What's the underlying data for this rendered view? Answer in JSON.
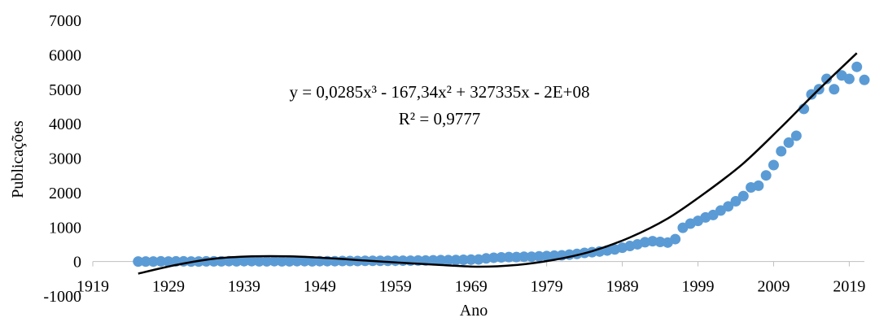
{
  "chart_data": {
    "type": "scatter",
    "title": "",
    "xlabel": "Ano",
    "ylabel": "Publicações",
    "xlim": [
      1919,
      2021
    ],
    "ylim": [
      -1000,
      7000
    ],
    "x_ticks": [
      1919,
      1929,
      1939,
      1949,
      1959,
      1969,
      1979,
      1989,
      1999,
      2009,
      2019
    ],
    "y_ticks": [
      -1000,
      0,
      1000,
      2000,
      3000,
      4000,
      5000,
      6000,
      7000
    ],
    "grid": false,
    "legend": "none",
    "marker_color": "#5b9bd5",
    "trendline_color": "#000000",
    "trendline": {
      "type": "polynomial",
      "order": 3,
      "equation": "y = 0,0285x³ - 167,34x² + 327335x - 2E+08",
      "r_squared": "R² = 0,9777",
      "points": [
        [
          1925,
          -350
        ],
        [
          1930,
          -100
        ],
        [
          1935,
          80
        ],
        [
          1940,
          150
        ],
        [
          1945,
          150
        ],
        [
          1950,
          100
        ],
        [
          1955,
          30
        ],
        [
          1960,
          -40
        ],
        [
          1965,
          -100
        ],
        [
          1970,
          -150
        ],
        [
          1975,
          -100
        ],
        [
          1980,
          50
        ],
        [
          1985,
          300
        ],
        [
          1990,
          700
        ],
        [
          1995,
          1250
        ],
        [
          2000,
          2000
        ],
        [
          2005,
          2850
        ],
        [
          2010,
          3900
        ],
        [
          2015,
          5000
        ],
        [
          2020,
          6050
        ]
      ]
    },
    "series": [
      {
        "points": [
          [
            1925,
            0
          ],
          [
            1926,
            0
          ],
          [
            1927,
            0
          ],
          [
            1928,
            5
          ],
          [
            1929,
            0
          ],
          [
            1930,
            5
          ],
          [
            1931,
            5
          ],
          [
            1932,
            0
          ],
          [
            1933,
            0
          ],
          [
            1934,
            5
          ],
          [
            1935,
            5
          ],
          [
            1936,
            5
          ],
          [
            1937,
            10
          ],
          [
            1938,
            5
          ],
          [
            1939,
            10
          ],
          [
            1940,
            10
          ],
          [
            1941,
            5
          ],
          [
            1942,
            5
          ],
          [
            1943,
            10
          ],
          [
            1944,
            5
          ],
          [
            1945,
            5
          ],
          [
            1946,
            10
          ],
          [
            1947,
            10
          ],
          [
            1948,
            5
          ],
          [
            1949,
            10
          ],
          [
            1950,
            10
          ],
          [
            1951,
            10
          ],
          [
            1952,
            15
          ],
          [
            1953,
            15
          ],
          [
            1954,
            15
          ],
          [
            1955,
            20
          ],
          [
            1956,
            20
          ],
          [
            1957,
            20
          ],
          [
            1958,
            20
          ],
          [
            1959,
            25
          ],
          [
            1960,
            25
          ],
          [
            1961,
            25
          ],
          [
            1962,
            30
          ],
          [
            1963,
            30
          ],
          [
            1964,
            35
          ],
          [
            1965,
            40
          ],
          [
            1966,
            40
          ],
          [
            1967,
            45
          ],
          [
            1968,
            50
          ],
          [
            1969,
            55
          ],
          [
            1970,
            60
          ],
          [
            1971,
            90
          ],
          [
            1972,
            110
          ],
          [
            1973,
            120
          ],
          [
            1974,
            130
          ],
          [
            1975,
            130
          ],
          [
            1976,
            140
          ],
          [
            1977,
            140
          ],
          [
            1978,
            150
          ],
          [
            1979,
            160
          ],
          [
            1980,
            170
          ],
          [
            1981,
            180
          ],
          [
            1982,
            200
          ],
          [
            1983,
            220
          ],
          [
            1984,
            250
          ],
          [
            1985,
            270
          ],
          [
            1986,
            290
          ],
          [
            1987,
            320
          ],
          [
            1988,
            350
          ],
          [
            1989,
            400
          ],
          [
            1990,
            450
          ],
          [
            1991,
            500
          ],
          [
            1992,
            560
          ],
          [
            1993,
            590
          ],
          [
            1994,
            570
          ],
          [
            1995,
            550
          ],
          [
            1996,
            650
          ],
          [
            1997,
            980
          ],
          [
            1998,
            1100
          ],
          [
            1999,
            1180
          ],
          [
            2000,
            1280
          ],
          [
            2001,
            1350
          ],
          [
            2002,
            1480
          ],
          [
            2003,
            1600
          ],
          [
            2004,
            1750
          ],
          [
            2005,
            1900
          ],
          [
            2006,
            2150
          ],
          [
            2007,
            2200
          ],
          [
            2008,
            2500
          ],
          [
            2009,
            2800
          ],
          [
            2010,
            3200
          ],
          [
            2011,
            3450
          ],
          [
            2012,
            3650
          ],
          [
            2013,
            4430
          ],
          [
            2014,
            4850
          ],
          [
            2015,
            5000
          ],
          [
            2016,
            5300
          ],
          [
            2017,
            5000
          ],
          [
            2018,
            5400
          ],
          [
            2019,
            5300
          ],
          [
            2020,
            5650
          ],
          [
            2021,
            5270
          ]
        ]
      }
    ]
  }
}
